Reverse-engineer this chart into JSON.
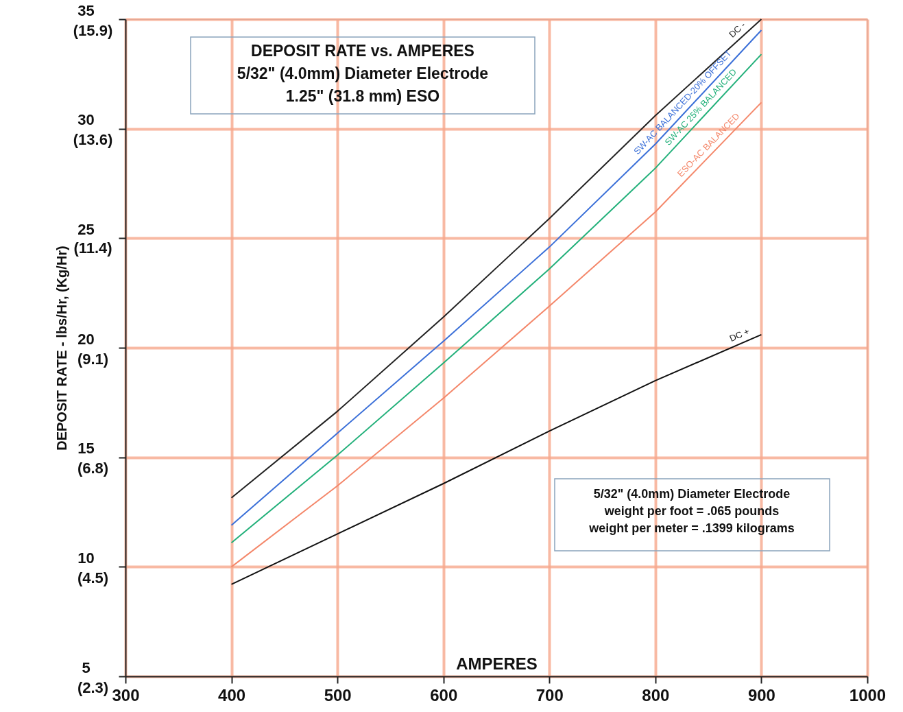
{
  "chart_data": {
    "type": "line",
    "title": "DEPOSIT  RATE vs. AMPERES\n5/32\" (4.0mm) Diameter Electrode\n1.25\" (31.8 mm) ESO",
    "xlabel": "AMPERES",
    "ylabel": "DEPOSIT RATE - lbs/Hr, (Kg/Hr)",
    "annotations": [
      "5/32\" (4.0mm) Diameter Electrode\nweight per foot = .065 pounds\nweight per meter = .1399 kilograms"
    ],
    "x": [
      400,
      500,
      600,
      700,
      800,
      900
    ],
    "series": [
      {
        "name": "DC -",
        "color": "#222222",
        "values": [
          13.15,
          17.1,
          21.4,
          25.9,
          30.6,
          35.0
        ]
      },
      {
        "name": "SW-AC BALANCED-20% OFFSET",
        "color": "#3a6fd8",
        "values": [
          11.9,
          16.1,
          20.3,
          24.6,
          29.3,
          34.5
        ]
      },
      {
        "name": "SW-AC 25% BALANCED",
        "color": "#22b07a",
        "values": [
          11.1,
          15.1,
          19.3,
          23.6,
          28.2,
          33.4
        ]
      },
      {
        "name": "ESO-AC BALANCED",
        "color": "#f4876a",
        "values": [
          10.0,
          13.7,
          17.7,
          21.9,
          26.2,
          31.2
        ]
      },
      {
        "name": "DC +",
        "color": "#111111",
        "values": [
          9.2,
          11.5,
          13.8,
          16.2,
          18.5,
          20.6
        ]
      }
    ],
    "xlim": [
      300,
      1000
    ],
    "xticks": [
      300,
      400,
      500,
      600,
      700,
      800,
      900,
      1000
    ],
    "ylim": [
      5,
      35
    ],
    "yticks": [
      5,
      10,
      15,
      20,
      25,
      30,
      35
    ],
    "y2lim": [
      2.268,
      15.876
    ],
    "y2ticks": [
      {
        "value": 2.268,
        "label": "(2.3)"
      },
      {
        "value": 4.536,
        "label": "(4.5)"
      },
      {
        "value": 6.804,
        "label": "(6.8)"
      },
      {
        "value": 9.072,
        "label": "(9.1)"
      },
      {
        "value": 11.36,
        "label": "(11.4)"
      },
      {
        "value": 13.608,
        "label": "(13.6)"
      },
      {
        "value": 15.876,
        "label": "(15.9)"
      }
    ],
    "grid": true,
    "marker": "none",
    "line_style": "solid"
  }
}
